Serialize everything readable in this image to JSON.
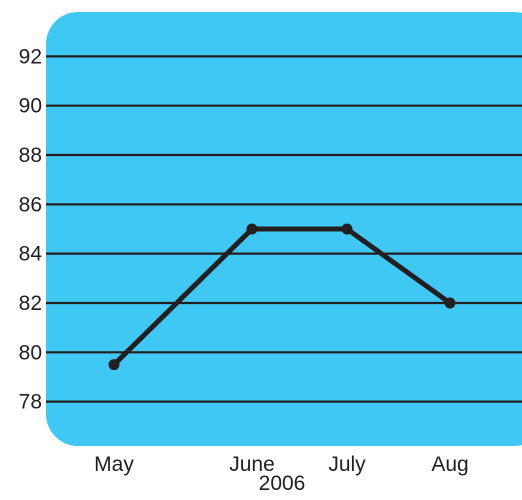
{
  "chart_data": {
    "type": "line",
    "title": "",
    "xlabel": "2006",
    "ylabel": "",
    "categories": [
      "May",
      "June",
      "July",
      "Aug"
    ],
    "series": [
      {
        "values": [
          79.5,
          85,
          85,
          82
        ]
      }
    ],
    "yticks": [
      92,
      90,
      88,
      86,
      84,
      82,
      80,
      78
    ],
    "ylim": [
      76.2,
      93.8
    ],
    "grid": true,
    "legend": "none",
    "colors": {
      "background": "#40c8f4",
      "line": "#231f20",
      "grid": "#231f20",
      "text": "#231f20"
    }
  }
}
